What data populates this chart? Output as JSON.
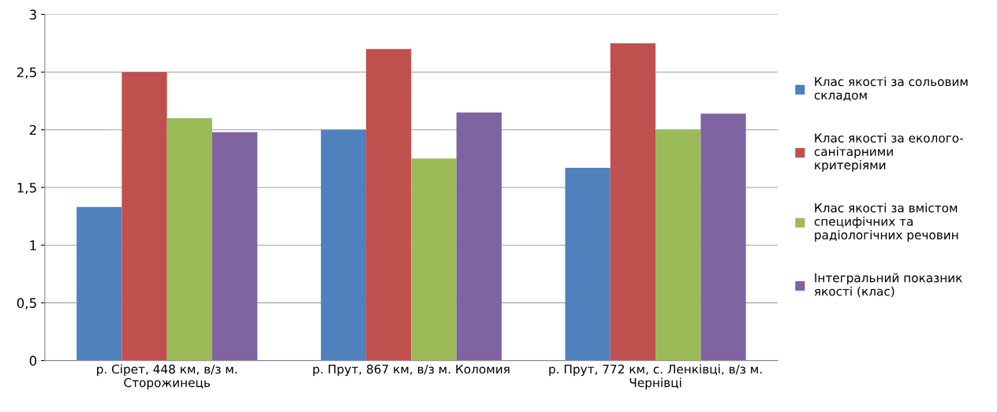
{
  "chart_data": {
    "type": "bar",
    "categories": [
      "р. Сірет, 448 км, в/з м.\nСторожинець",
      "р. Прут, 867 км, в/з м. Коломия",
      "р. Прут, 772 км, с. Ленківці, в/з м.\nЧернівці"
    ],
    "series": [
      {
        "name": "Клас якості за сольовим\nскладом",
        "color": "#4f81bd",
        "values": [
          1.33,
          2.0,
          1.67
        ]
      },
      {
        "name": "Клас якості за еколого-\nсанітарними\nкритеріями",
        "color": "#c0504d",
        "values": [
          2.5,
          2.7,
          2.75
        ]
      },
      {
        "name": "Клас якості за вмістом\nспецифічних та\nрадіологічних речовин",
        "color": "#9bbb59",
        "values": [
          2.1,
          1.75,
          2.0
        ]
      },
      {
        "name": "Інтегральний показник\nякості (клас)",
        "color": "#8064a2",
        "values": [
          1.98,
          2.15,
          2.14
        ]
      }
    ],
    "ylim": [
      0,
      3
    ],
    "yticks": [
      {
        "value": 0,
        "label": "0"
      },
      {
        "value": 0.5,
        "label": "0,5"
      },
      {
        "value": 1,
        "label": "1"
      },
      {
        "value": 1.5,
        "label": "1,5"
      },
      {
        "value": 2,
        "label": "2"
      },
      {
        "value": 2.5,
        "label": "2,5"
      },
      {
        "value": 3,
        "label": "3"
      }
    ],
    "grid": "y",
    "legend": "right"
  }
}
